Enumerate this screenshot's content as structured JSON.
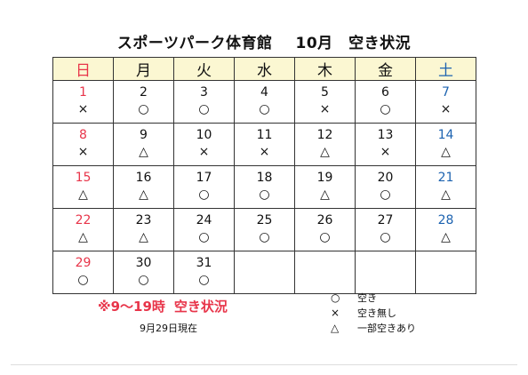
{
  "title": {
    "facility": "スポーツパーク体育館",
    "period": "10月　空き状況"
  },
  "weekdays": [
    "日",
    "月",
    "火",
    "水",
    "木",
    "金",
    "土"
  ],
  "weeks": [
    [
      {
        "day": "1",
        "mark": "×"
      },
      {
        "day": "2",
        "mark": "○"
      },
      {
        "day": "3",
        "mark": "○"
      },
      {
        "day": "4",
        "mark": "○"
      },
      {
        "day": "5",
        "mark": "×"
      },
      {
        "day": "6",
        "mark": "○"
      },
      {
        "day": "7",
        "mark": "×"
      }
    ],
    [
      {
        "day": "8",
        "mark": "×"
      },
      {
        "day": "9",
        "mark": "△"
      },
      {
        "day": "10",
        "mark": "×"
      },
      {
        "day": "11",
        "mark": "×"
      },
      {
        "day": "12",
        "mark": "△"
      },
      {
        "day": "13",
        "mark": "×"
      },
      {
        "day": "14",
        "mark": "△"
      }
    ],
    [
      {
        "day": "15",
        "mark": "△"
      },
      {
        "day": "16",
        "mark": "△"
      },
      {
        "day": "17",
        "mark": "○"
      },
      {
        "day": "18",
        "mark": "○"
      },
      {
        "day": "19",
        "mark": "△"
      },
      {
        "day": "20",
        "mark": "○"
      },
      {
        "day": "21",
        "mark": "△"
      }
    ],
    [
      {
        "day": "22",
        "mark": "△"
      },
      {
        "day": "23",
        "mark": "△"
      },
      {
        "day": "24",
        "mark": "○"
      },
      {
        "day": "25",
        "mark": "○"
      },
      {
        "day": "26",
        "mark": "○"
      },
      {
        "day": "27",
        "mark": "○"
      },
      {
        "day": "28",
        "mark": "△"
      }
    ],
    [
      {
        "day": "29",
        "mark": "○"
      },
      {
        "day": "30",
        "mark": "○"
      },
      {
        "day": "31",
        "mark": "○"
      },
      {
        "day": "",
        "mark": ""
      },
      {
        "day": "",
        "mark": ""
      },
      {
        "day": "",
        "mark": ""
      },
      {
        "day": "",
        "mark": ""
      }
    ]
  ],
  "note": {
    "prefix": "※9～19時",
    "label": "空き状況"
  },
  "as_of": "9月29日現在",
  "legend": [
    {
      "symbol": "○",
      "label": "空き"
    },
    {
      "symbol": "×",
      "label": "空き無し"
    },
    {
      "symbol": "△",
      "label": "一部空きあり"
    }
  ],
  "colors": {
    "sunday": "#e8354a",
    "saturday": "#1d63b0",
    "header_bg": "#fbf7d2",
    "note": "#e8354a"
  }
}
